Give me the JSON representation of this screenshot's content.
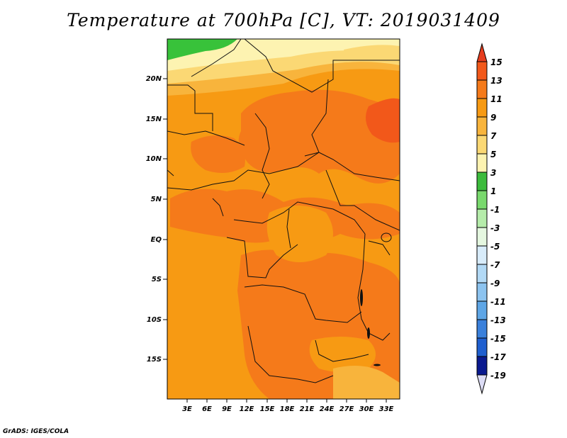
{
  "title": "Temperature at 700hPa [C], VT: 2019031409",
  "credit": "GrADS: IGES/COLA",
  "axes": {
    "lat_labels": [
      "20N",
      "15N",
      "10N",
      "5N",
      "EQ",
      "5S",
      "10S",
      "15S"
    ],
    "lon_labels": [
      "3E",
      "6E",
      "9E",
      "12E",
      "15E",
      "18E",
      "21E",
      "24E",
      "27E",
      "30E",
      "33E"
    ]
  },
  "legend": {
    "labels": [
      "15",
      "13",
      "11",
      "9",
      "7",
      "5",
      "3",
      "1",
      "-1",
      "-3",
      "-5",
      "-7",
      "-9",
      "-11",
      "-13",
      "-15",
      "-17",
      "-19"
    ],
    "colors": [
      "#e63d1e",
      "#f2581a",
      "#f57a1a",
      "#f79a13",
      "#f8b43c",
      "#fbd874",
      "#fdf3b1",
      "#3cbb3c",
      "#79d96d",
      "#b5ecaa",
      "#e5f7e0",
      "#d8ecfa",
      "#b2d9f5",
      "#8cc3ef",
      "#5ea6e6",
      "#3a80db",
      "#1f5fcf",
      "#1339b5",
      "#0a1a8f",
      "#050a55"
    ]
  },
  "map": {
    "colors": {
      "green": "#38c23a",
      "pale_yellow": "#fdf3b1",
      "light_yellow": "#fbd874",
      "light_orange": "#f8b43c",
      "orange": "#f79a13",
      "dark_orange": "#f57a1a",
      "red_orange": "#f2581a"
    }
  }
}
